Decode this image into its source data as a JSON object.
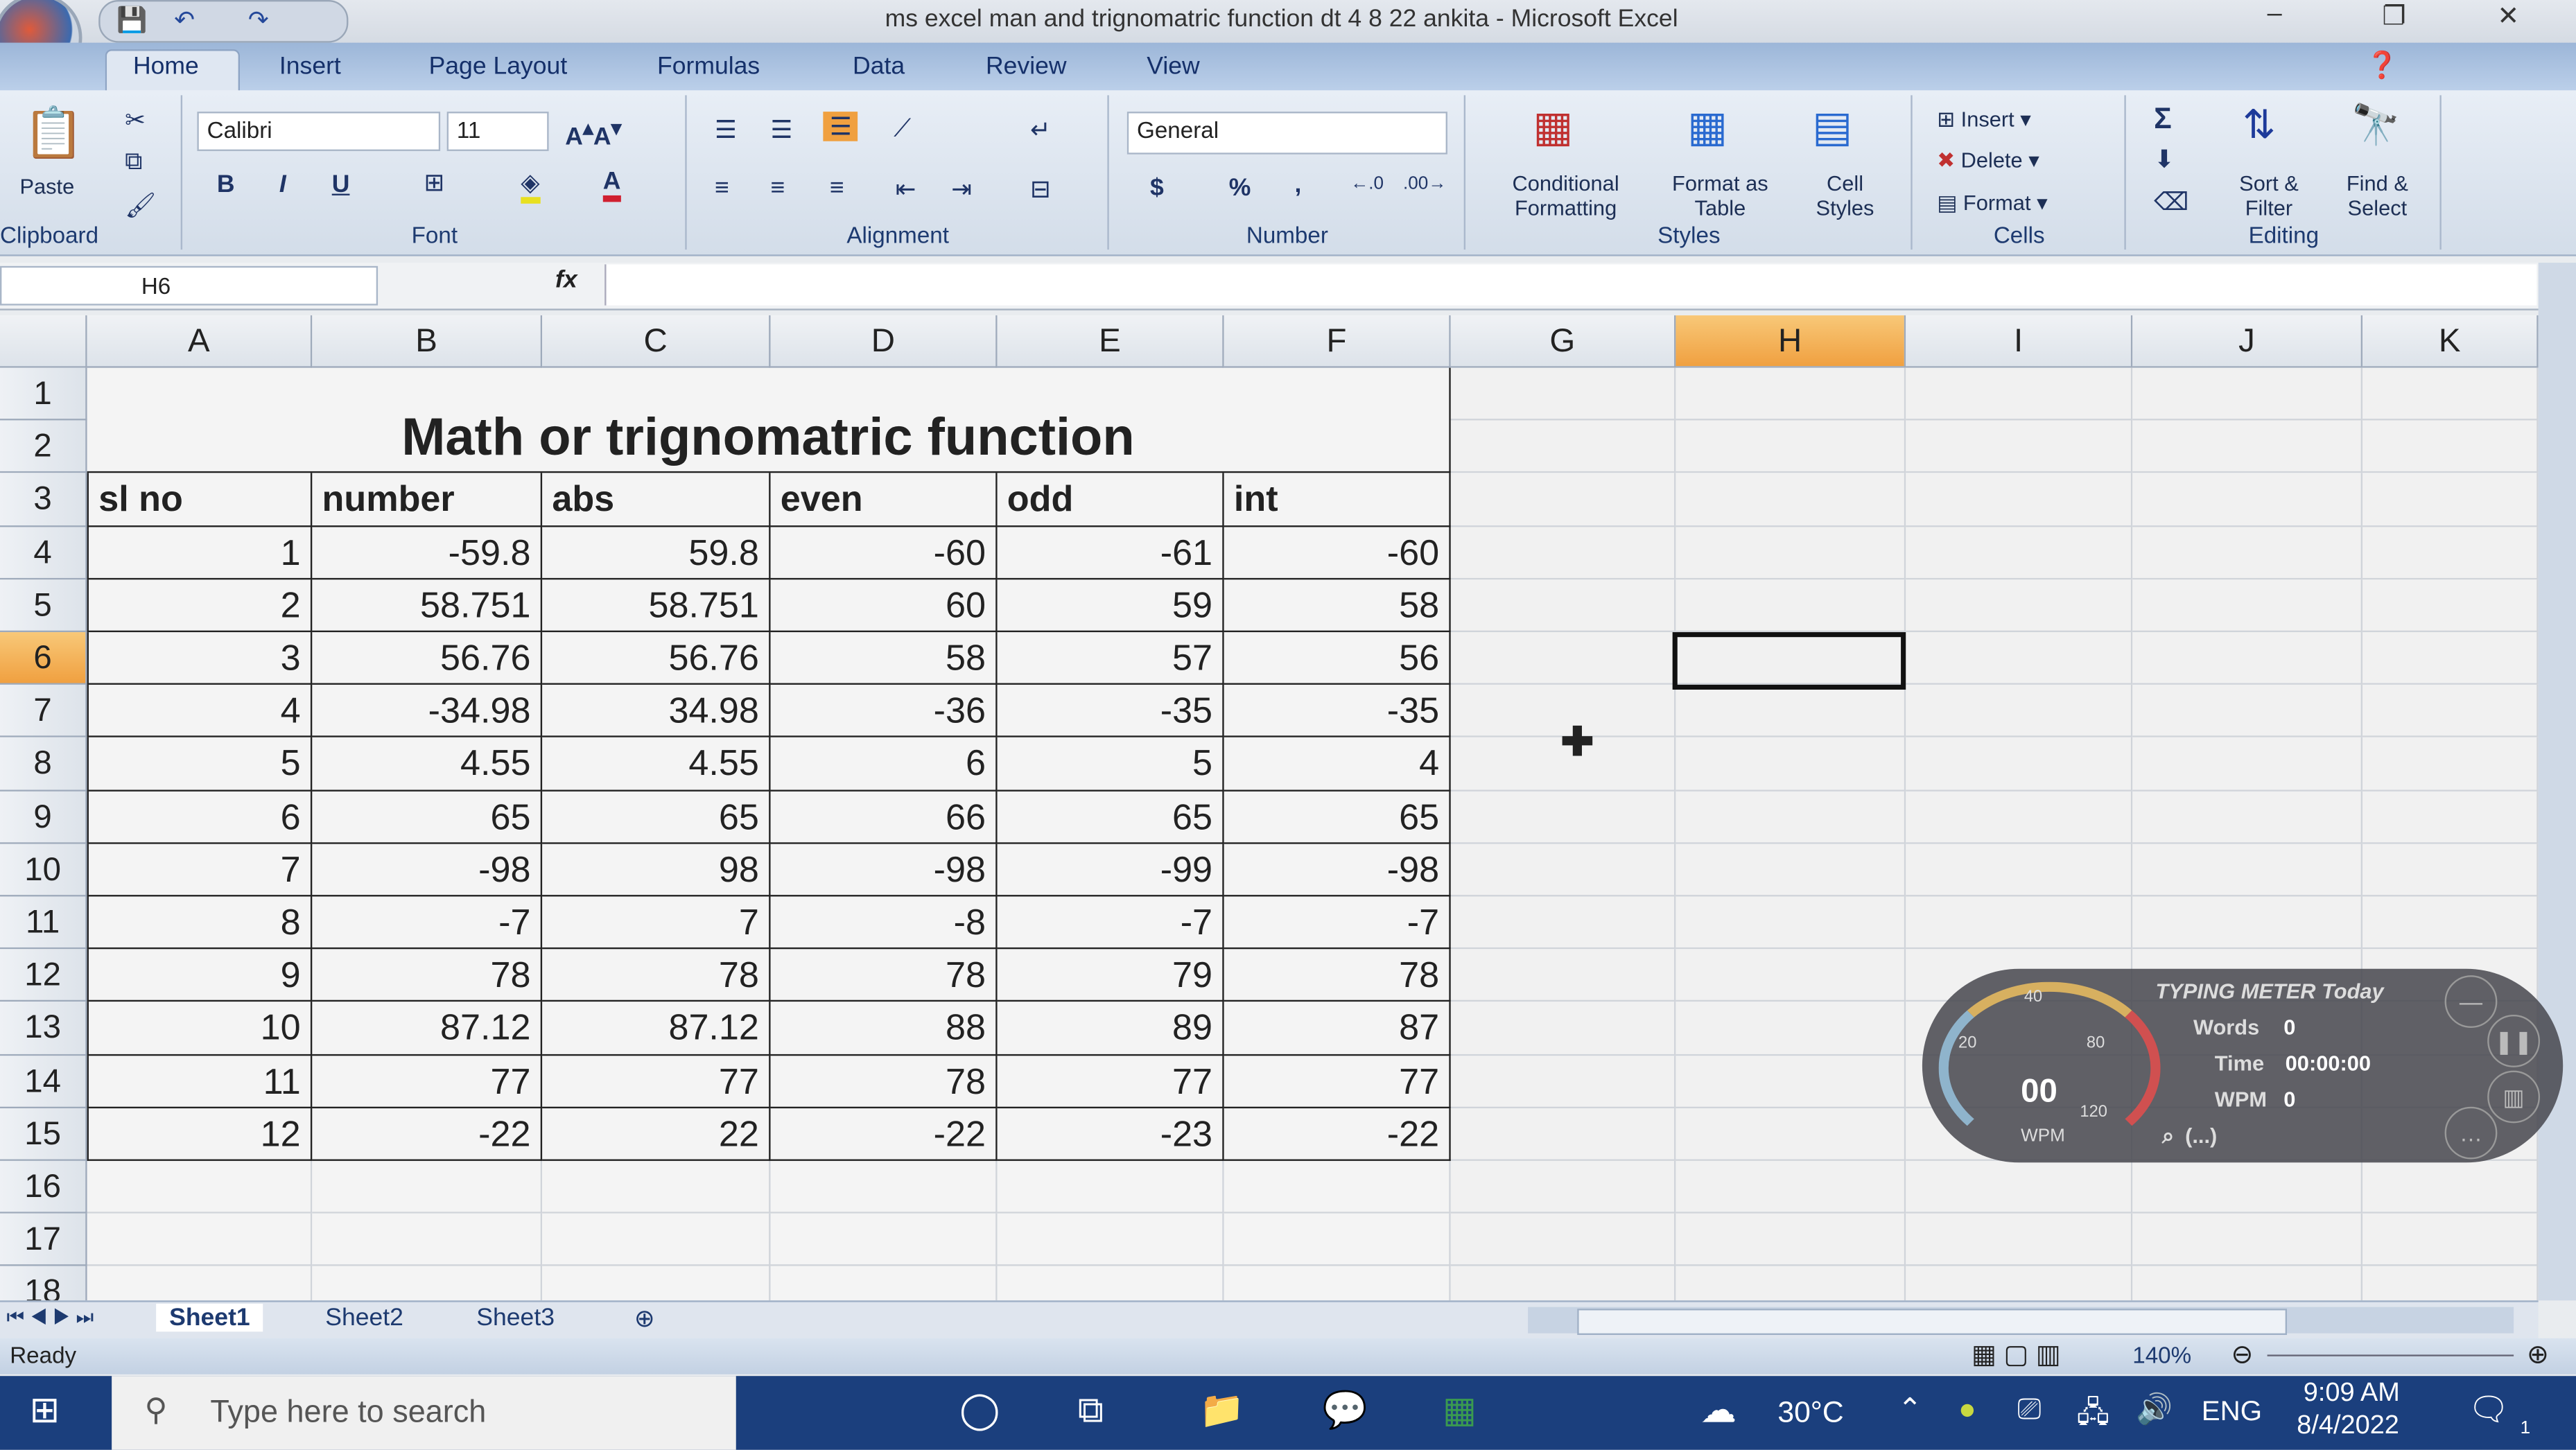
{
  "window": {
    "title": "ms excel man and trignomatric function dt 4 8 22 ankita - Microsoft Excel",
    "minimize": "–",
    "restore": "❐",
    "close": "✕"
  },
  "ribbon_tabs": [
    "Home",
    "Insert",
    "Page Layout",
    "Formulas",
    "Data",
    "Review",
    "View"
  ],
  "ribbon": {
    "clipboard": {
      "label": "Clipboard",
      "paste": "Paste"
    },
    "font": {
      "label": "Font",
      "name": "Calibri",
      "size": "11",
      "bold": "B",
      "italic": "I",
      "underline": "U"
    },
    "alignment": {
      "label": "Alignment"
    },
    "number": {
      "label": "Number",
      "format": "General",
      "currency": "$",
      "percent": "%",
      "comma": ","
    },
    "styles": {
      "label": "Styles",
      "conditional": "Conditional Formatting",
      "format_table": "Format as Table",
      "cell_styles": "Cell Styles"
    },
    "cells": {
      "label": "Cells",
      "insert": "Insert",
      "delete": "Delete",
      "format": "Format"
    },
    "editing": {
      "label": "Editing",
      "sum": "Σ",
      "sort": "Sort & Filter",
      "find": "Find & Select"
    }
  },
  "formula_bar": {
    "name_box": "H6",
    "fx": "fx",
    "value": ""
  },
  "columns": [
    "A",
    "B",
    "C",
    "D",
    "E",
    "F",
    "G",
    "H",
    "I",
    "J",
    "K"
  ],
  "selected_column": "H",
  "selected_row": 6,
  "rows": [
    1,
    2,
    3,
    4,
    5,
    6,
    7,
    8,
    9,
    10,
    11,
    12,
    13,
    14,
    15,
    16,
    17,
    18
  ],
  "sheet": {
    "title": "Math or trignomatric function",
    "headers": [
      "sl no",
      "number",
      "abs",
      "even",
      "odd",
      "int"
    ],
    "data": [
      [
        "1",
        "-59.8",
        "59.8",
        "-60",
        "-61",
        "-60"
      ],
      [
        "2",
        "58.751",
        "58.751",
        "60",
        "59",
        "58"
      ],
      [
        "3",
        "56.76",
        "56.76",
        "58",
        "57",
        "56"
      ],
      [
        "4",
        "-34.98",
        "34.98",
        "-36",
        "-35",
        "-35"
      ],
      [
        "5",
        "4.55",
        "4.55",
        "6",
        "5",
        "4"
      ],
      [
        "6",
        "65",
        "65",
        "66",
        "65",
        "65"
      ],
      [
        "7",
        "-98",
        "98",
        "-98",
        "-99",
        "-98"
      ],
      [
        "8",
        "-7",
        "7",
        "-8",
        "-7",
        "-7"
      ],
      [
        "9",
        "78",
        "78",
        "78",
        "79",
        "78"
      ],
      [
        "10",
        "87.12",
        "87.12",
        "88",
        "89",
        "87"
      ],
      [
        "11",
        "77",
        "77",
        "78",
        "77",
        "77"
      ],
      [
        "12",
        "-22",
        "22",
        "-22",
        "-23",
        "-22"
      ]
    ]
  },
  "sheet_tabs": [
    "Sheet1",
    "Sheet2",
    "Sheet3"
  ],
  "active_sheet": "Sheet1",
  "status": {
    "text": "Ready",
    "zoom": "140%"
  },
  "typing_meter": {
    "title": "TYPING METER Today",
    "words_label": "Words",
    "words": "0",
    "time_label": "Time",
    "time": "00:00:00",
    "wpm_label": "WPM",
    "wpm": "0",
    "gauge_value": "00",
    "gauge_unit": "WPM",
    "ticks": [
      "20",
      "40",
      "80",
      "120"
    ],
    "search": "(...)"
  },
  "taskbar": {
    "search_placeholder": "Type here to search",
    "temperature": "30°C",
    "language": "ENG",
    "time": "9:09 AM",
    "date": "8/4/2022",
    "notifications": "1"
  }
}
